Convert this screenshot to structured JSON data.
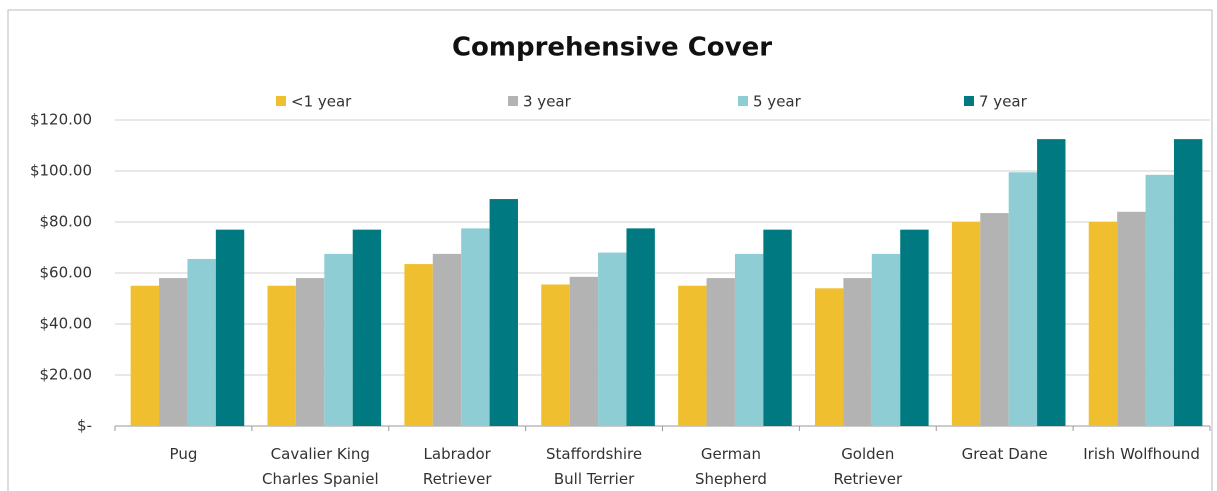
{
  "chart_data": {
    "type": "bar",
    "title": "Comprehensive Cover",
    "categories": [
      "Pug",
      "Cavalier King\nCharles Spaniel",
      "Labrador\nRetriever",
      "Staffordshire\nBull Terrier",
      "German\nShepherd",
      "Golden\nRetriever",
      "Great Dane",
      "Irish Wolfhound"
    ],
    "series": [
      {
        "name": "<1 year",
        "color": "#f0bf2f",
        "values": [
          55,
          55,
          63.5,
          55.5,
          55,
          54,
          80,
          80
        ]
      },
      {
        "name": "3 year",
        "color": "#b3b3b3",
        "values": [
          58,
          58,
          67.5,
          58.5,
          58,
          58,
          83.5,
          84
        ]
      },
      {
        "name": "5 year",
        "color": "#8ecdd3",
        "values": [
          65.5,
          67.5,
          77.5,
          68,
          67.5,
          67.5,
          99.5,
          98.5
        ]
      },
      {
        "name": "7 year",
        "color": "#007a80",
        "values": [
          77,
          77,
          89,
          77.5,
          77,
          77,
          112.5,
          112.5
        ]
      }
    ],
    "ylim": [
      0,
      120
    ],
    "yticks": [
      {
        "value": 0,
        "label": "$-"
      },
      {
        "value": 20,
        "label": "$20.00"
      },
      {
        "value": 40,
        "label": "$40.00"
      },
      {
        "value": 60,
        "label": "$60.00"
      },
      {
        "value": 80,
        "label": "$80.00"
      },
      {
        "value": 100,
        "label": "$100.00"
      },
      {
        "value": 120,
        "label": "$120.00"
      }
    ],
    "grid": true,
    "legend": "top"
  }
}
